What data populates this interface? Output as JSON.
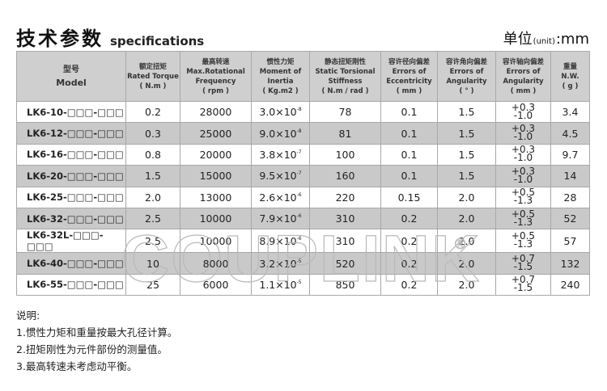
{
  "header": {
    "title_cn": "技术参数",
    "title_en": "specifications",
    "unit_cn": "单位",
    "unit_small": "(unit)",
    "unit_value": ":mm"
  },
  "table": {
    "columns": [
      {
        "cn": "型号",
        "en": "Model",
        "unit": ""
      },
      {
        "cn": "额定扭矩",
        "en": "Rated Torque",
        "unit": "( N.m )"
      },
      {
        "cn": "最高转速",
        "en": "Max.Rotational Frequency",
        "unit": "( rpm )"
      },
      {
        "cn": "惯性力矩",
        "en": "Moment of Inertia",
        "unit": "( Kg.m2 )"
      },
      {
        "cn": "静态扭矩刚性",
        "en": "Static Torsional Stiffness",
        "unit": "( N.m / rad )"
      },
      {
        "cn": "容许径向偏差",
        "en": "Errors of Eccentricity",
        "unit": "( mm )"
      },
      {
        "cn": "容许角向偏差",
        "en": "Errors of Angularity",
        "unit": "( ° )"
      },
      {
        "cn": "容许轴向偏差",
        "en": "Errors of Angularity",
        "unit": "( mm )"
      },
      {
        "cn": "重量",
        "en": "N.W.",
        "unit": "( g )"
      }
    ],
    "rows": [
      {
        "model": "LK6-10-□□□-□□□",
        "torque": "0.2",
        "speed": "28000",
        "inertia": "3.0×10",
        "exp": "-8",
        "stiffness": "78",
        "ecc": "0.1",
        "ang": "1.5",
        "axial_plus": "+0.3",
        "axial_minus": "-1.0",
        "weight": "3.4"
      },
      {
        "model": "LK6-12-□□□-□□□",
        "torque": "0.3",
        "speed": "25000",
        "inertia": "9.0×10",
        "exp": "-8",
        "stiffness": "81",
        "ecc": "0.1",
        "ang": "1.5",
        "axial_plus": "+0.3",
        "axial_minus": "-1.0",
        "weight": "4.5"
      },
      {
        "model": "LK6-16-□□□-□□□",
        "torque": "0.8",
        "speed": "20000",
        "inertia": "3.8×10",
        "exp": "-7",
        "stiffness": "100",
        "ecc": "0.1",
        "ang": "1.5",
        "axial_plus": "+0.3",
        "axial_minus": "-1.0",
        "weight": "9.7"
      },
      {
        "model": "LK6-20-□□□-□□□",
        "torque": "1.5",
        "speed": "15000",
        "inertia": "9.5×10",
        "exp": "-7",
        "stiffness": "160",
        "ecc": "0.1",
        "ang": "1.5",
        "axial_plus": "+0.3",
        "axial_minus": "-1.0",
        "weight": "14"
      },
      {
        "model": "LK6-25-□□□-□□□",
        "torque": "2.0",
        "speed": "13000",
        "inertia": "2.6×10",
        "exp": "-6",
        "stiffness": "220",
        "ecc": "0.15",
        "ang": "2.0",
        "axial_plus": "+0.5",
        "axial_minus": "-1.3",
        "weight": "28"
      },
      {
        "model": "LK6-32-□□□-□□□",
        "torque": "2.5",
        "speed": "10000",
        "inertia": "7.9×10",
        "exp": "-6",
        "stiffness": "310",
        "ecc": "0.2",
        "ang": "2.0",
        "axial_plus": "+0.5",
        "axial_minus": "-1.3",
        "weight": "52"
      },
      {
        "model": "LK6-32L-□□□-□□□",
        "torque": "2.5",
        "speed": "10000",
        "inertia": "8.9×10",
        "exp": "-6",
        "stiffness": "310",
        "ecc": "0.2",
        "ang": "2.0",
        "axial_plus": "+0.5",
        "axial_minus": "-1.3",
        "weight": "57"
      },
      {
        "model": "LK6-40-□□□-□□□",
        "torque": "10",
        "speed": "8000",
        "inertia": "3.2×10",
        "exp": "-5",
        "stiffness": "520",
        "ecc": "0.2",
        "ang": "2.0",
        "axial_plus": "+0.7",
        "axial_minus": "-1.5",
        "weight": "132"
      },
      {
        "model": "LK6-55-□□□-□□□",
        "torque": "25",
        "speed": "6000",
        "inertia": "1.1×10",
        "exp": "-5",
        "stiffness": "850",
        "ecc": "0.2",
        "ang": "2.0",
        "axial_plus": "+0.7",
        "axial_minus": "-1.5",
        "weight": "240"
      }
    ]
  },
  "watermark": "COUPLINK®",
  "notes": {
    "heading": "说明:",
    "items": [
      "1.惯性力矩和重量按最大孔径计算。",
      "2.扭矩刚性为元件部份的测量值。",
      "3.最高转速未考虑动平衡。"
    ]
  },
  "colors": {
    "header_bg": "#cfcfcf",
    "row_gray": "#c9c9c9",
    "row_white": "#ffffff"
  }
}
